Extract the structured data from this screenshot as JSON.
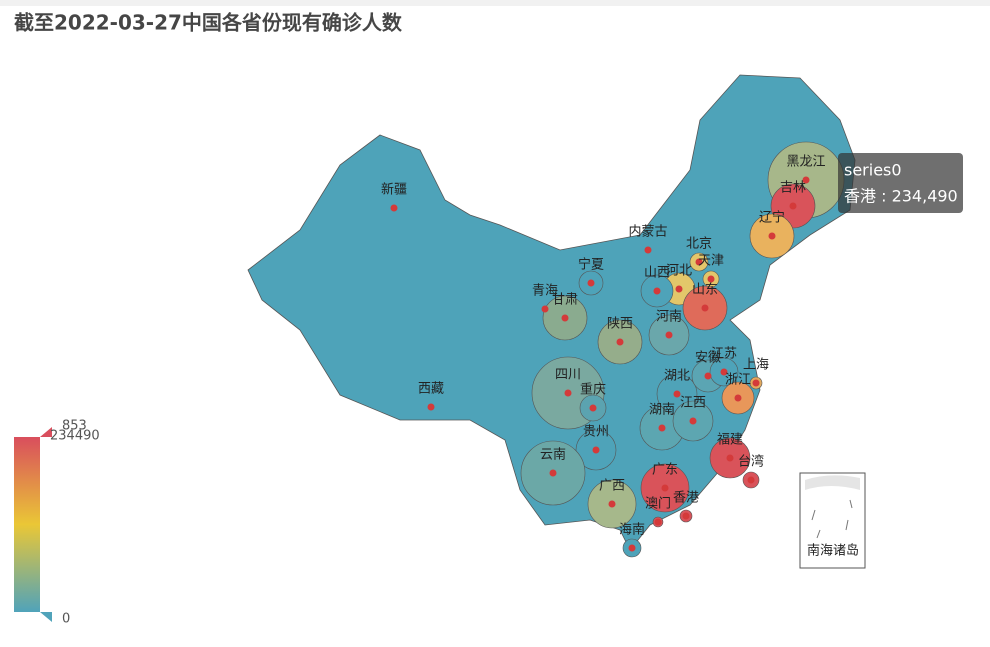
{
  "title": "截至2022-03-27中国各省份现有确诊人数",
  "regions": [
    {
      "name": "新疆",
      "color": "#4ea3b9"
    },
    {
      "name": "西藏",
      "color": "#4ea3b9"
    },
    {
      "name": "青海",
      "color": "#4ea3b9"
    },
    {
      "name": "甘肃",
      "color": "#8aab8f"
    },
    {
      "name": "宁夏",
      "color": "#4ea3b9"
    },
    {
      "name": "内蒙古",
      "color": "#4ea3b9"
    },
    {
      "name": "黑龙江",
      "color": "#a7b78a"
    },
    {
      "name": "吉林",
      "color": "#d9535a"
    },
    {
      "name": "辽宁",
      "color": "#e9b25e"
    },
    {
      "name": "北京",
      "color": "#e3c66a"
    },
    {
      "name": "天津",
      "color": "#e3c66a"
    },
    {
      "name": "河北",
      "color": "#e3c76a"
    },
    {
      "name": "山西",
      "color": "#4ea3b9"
    },
    {
      "name": "山东",
      "color": "#df6b5a"
    },
    {
      "name": "河南",
      "color": "#6aa7ab"
    },
    {
      "name": "陕西",
      "color": "#95ad8b"
    },
    {
      "name": "四川",
      "color": "#7aa9a0"
    },
    {
      "name": "重庆",
      "color": "#5ba3b0"
    },
    {
      "name": "贵州",
      "color": "#4ea3b9"
    },
    {
      "name": "云南",
      "color": "#6ba8a7"
    },
    {
      "name": "广西",
      "color": "#a6b88b"
    },
    {
      "name": "广东",
      "color": "#d9535a"
    },
    {
      "name": "海南",
      "color": "#4ea3b9"
    },
    {
      "name": "湖南",
      "color": "#5ca6b1"
    },
    {
      "name": "湖北",
      "color": "#4fa3b8"
    },
    {
      "name": "江西",
      "color": "#5da6b1"
    },
    {
      "name": "安徽",
      "color": "#5ba5b3"
    },
    {
      "name": "江苏",
      "color": "#4ea3b9"
    },
    {
      "name": "上海",
      "color": "#e3a95e"
    },
    {
      "name": "浙江",
      "color": "#e8975a"
    },
    {
      "name": "福建",
      "color": "#d9535a"
    },
    {
      "name": "台湾",
      "color": "#d9535a"
    },
    {
      "name": "香港",
      "color": "#d9535a"
    },
    {
      "name": "澳门",
      "color": "#d9535a"
    }
  ],
  "south_sea_label": "南海诸岛",
  "visual_map": {
    "max": 234490,
    "min": 0,
    "handle": 853,
    "colors": [
      "#d94e5d",
      "#eac736",
      "#50a3ba"
    ]
  },
  "tooltip": {
    "series": "series0",
    "text": "香港 : 234,490"
  }
}
